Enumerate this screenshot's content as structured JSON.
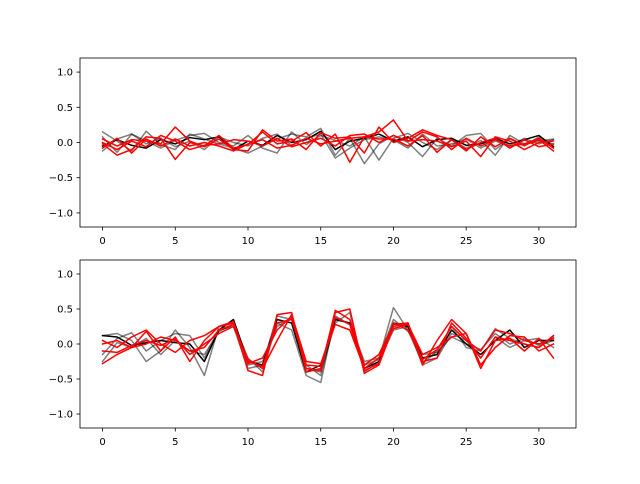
{
  "chart_data": [
    {
      "type": "line",
      "title": "",
      "xlabel": "",
      "ylabel": "",
      "xlim": [
        -1.55,
        32.55
      ],
      "ylim": [
        -1.2,
        1.2
      ],
      "xticks": [
        0,
        5,
        10,
        15,
        20,
        25,
        30
      ],
      "yticks": [
        -1.0,
        -0.5,
        0.0,
        0.5,
        1.0
      ],
      "xtick_labels": [
        "0",
        "5",
        "10",
        "15",
        "20",
        "25",
        "30"
      ],
      "ytick_labels": [
        "−1.0",
        "−0.5",
        "0.0",
        "0.5",
        "1.0"
      ],
      "grid": false,
      "x": [
        0,
        1,
        2,
        3,
        4,
        5,
        6,
        7,
        8,
        9,
        10,
        11,
        12,
        13,
        14,
        15,
        16,
        17,
        18,
        19,
        20,
        21,
        22,
        23,
        24,
        25,
        26,
        27,
        28,
        29,
        30,
        31
      ],
      "series": [
        {
          "color": "#000000",
          "alpha": 0.5,
          "values": [
            0.15,
            0.02,
            -0.12,
            0.16,
            -0.03,
            -0.1,
            0.12,
            0.05,
            -0.02,
            -0.08,
            -0.15,
            -0.05,
            0.05,
            0.12,
            0.08,
            0.2,
            -0.18,
            0.06,
            -0.3,
            -0.02,
            0.1,
            0.0,
            -0.2,
            0.06,
            -0.05,
            0.1,
            0.13,
            -0.1,
            0.05,
            -0.05,
            0.08,
            -0.03
          ]
        },
        {
          "color": "#000000",
          "alpha": 0.5,
          "values": [
            0.08,
            -0.14,
            0.12,
            0.02,
            -0.08,
            0.03,
            0.1,
            0.13,
            0.0,
            -0.05,
            0.1,
            -0.08,
            -0.15,
            0.15,
            -0.03,
            0.1,
            0.03,
            -0.05,
            0.08,
            -0.25,
            0.06,
            0.13,
            0.0,
            -0.1,
            0.04,
            -0.08,
            0.03,
            -0.18,
            0.1,
            -0.02,
            0.02,
            0.05
          ]
        },
        {
          "color": "#000000",
          "alpha": 0.5,
          "values": [
            -0.12,
            0.05,
            0.12,
            -0.02,
            0.06,
            -0.06,
            0.02,
            -0.1,
            0.08,
            0.0,
            -0.05,
            0.06,
            0.12,
            -0.04,
            0.06,
            0.12,
            -0.22,
            -0.08,
            0.04,
            0.08,
            0.04,
            -0.08,
            0.12,
            -0.05,
            -0.02,
            0.05,
            -0.08,
            0.02,
            -0.05,
            0.06,
            -0.02,
            0.04
          ]
        },
        {
          "color": "#000000",
          "alpha": 1.0,
          "values": [
            -0.05,
            0.04,
            -0.04,
            -0.08,
            0.04,
            -0.02,
            0.07,
            0.04,
            0.08,
            -0.1,
            0.02,
            -0.04,
            0.1,
            0.0,
            0.04,
            0.16,
            -0.1,
            0.02,
            0.06,
            0.12,
            0.02,
            0.08,
            -0.06,
            0.04,
            0.06,
            -0.04,
            -0.02,
            0.06,
            -0.02,
            0.04,
            0.1,
            -0.06
          ]
        },
        {
          "color": "#ff0000",
          "alpha": 1.0,
          "values": [
            -0.02,
            -0.18,
            -0.1,
            0.08,
            0.06,
            -0.24,
            0.0,
            -0.05,
            0.1,
            -0.08,
            -0.03,
            0.15,
            -0.02,
            0.02,
            0.14,
            -0.05,
            0.12,
            -0.28,
            0.08,
            0.15,
            0.32,
            0.02,
            0.15,
            0.08,
            -0.1,
            0.06,
            -0.05,
            0.04,
            -0.05,
            -0.02,
            0.06,
            -0.08
          ]
        },
        {
          "color": "#ff0000",
          "alpha": 1.0,
          "values": [
            0.05,
            -0.05,
            0.04,
            0.02,
            -0.02,
            0.22,
            0.02,
            -0.06,
            0.05,
            -0.1,
            -0.12,
            0.18,
            0.02,
            0.05,
            -0.1,
            0.14,
            0.06,
            0.08,
            -0.15,
            0.22,
            0.0,
            0.06,
            0.18,
            0.1,
            0.04,
            -0.12,
            0.08,
            -0.06,
            0.06,
            -0.04,
            0.04,
            -0.12
          ]
        },
        {
          "color": "#ff0000",
          "alpha": 1.0,
          "values": [
            -0.08,
            0.06,
            -0.15,
            0.05,
            -0.05,
            0.05,
            -0.05,
            0.0,
            -0.05,
            -0.12,
            -0.02,
            0.04,
            -0.08,
            -0.04,
            0.06,
            -0.02,
            0.02,
            0.06,
            0.08,
            0.05,
            0.05,
            -0.05,
            0.1,
            -0.14,
            0.04,
            -0.1,
            0.0,
            0.06,
            -0.08,
            0.04,
            -0.06,
            -0.02
          ]
        },
        {
          "color": "#ff0000",
          "alpha": 1.0,
          "values": [
            0.0,
            -0.1,
            0.02,
            -0.06,
            0.1,
            0.02,
            -0.1,
            -0.04,
            -0.02,
            0.04,
            0.02,
            -0.05,
            0.06,
            -0.06,
            0.0,
            0.06,
            -0.05,
            0.1,
            0.12,
            0.0,
            0.1,
            0.02,
            0.04,
            0.02,
            -0.06,
            0.02,
            -0.2,
            0.08,
            0.02,
            -0.1,
            0.0,
            0.02
          ]
        }
      ]
    },
    {
      "type": "line",
      "title": "",
      "xlabel": "",
      "ylabel": "",
      "xlim": [
        -1.55,
        32.55
      ],
      "ylim": [
        -1.2,
        1.2
      ],
      "xticks": [
        0,
        5,
        10,
        15,
        20,
        25,
        30
      ],
      "yticks": [
        -1.0,
        -0.5,
        0.0,
        0.5,
        1.0
      ],
      "xtick_labels": [
        "0",
        "5",
        "10",
        "15",
        "20",
        "25",
        "30"
      ],
      "ytick_labels": [
        "−1.0",
        "−0.5",
        "0.0",
        "0.5",
        "1.0"
      ],
      "grid": false,
      "x": [
        0,
        1,
        2,
        3,
        4,
        5,
        6,
        7,
        8,
        9,
        10,
        11,
        12,
        13,
        14,
        15,
        16,
        17,
        18,
        19,
        20,
        21,
        22,
        23,
        24,
        25,
        26,
        27,
        28,
        29,
        30,
        31
      ],
      "series": [
        {
          "color": "#000000",
          "alpha": 0.5,
          "values": [
            0.12,
            0.15,
            0.05,
            -0.25,
            -0.1,
            0.2,
            -0.05,
            -0.45,
            0.25,
            0.3,
            -0.2,
            -0.4,
            0.3,
            0.2,
            -0.45,
            -0.55,
            0.4,
            0.28,
            -0.3,
            -0.22,
            0.52,
            0.2,
            -0.28,
            -0.1,
            0.25,
            -0.05,
            -0.1,
            0.22,
            0.08,
            0.0,
            -0.05,
            0.1
          ]
        },
        {
          "color": "#000000",
          "alpha": 0.5,
          "values": [
            -0.15,
            0.08,
            0.16,
            -0.1,
            0.05,
            0.15,
            0.12,
            -0.2,
            0.2,
            0.25,
            -0.35,
            -0.3,
            0.4,
            0.35,
            -0.35,
            -0.4,
            0.3,
            0.45,
            -0.4,
            -0.25,
            0.2,
            0.25,
            -0.3,
            -0.2,
            0.15,
            0.05,
            -0.2,
            0.1,
            -0.05,
            0.05,
            0.08,
            -0.05
          ]
        },
        {
          "color": "#000000",
          "alpha": 0.5,
          "values": [
            -0.25,
            0.02,
            -0.05,
            0.08,
            -0.15,
            0.05,
            -0.1,
            -0.15,
            0.18,
            0.28,
            -0.3,
            -0.25,
            0.25,
            0.38,
            -0.3,
            -0.45,
            0.35,
            0.3,
            -0.25,
            -0.2,
            0.35,
            0.18,
            -0.15,
            -0.12,
            0.1,
            0.0,
            -0.08,
            0.15,
            0.0,
            0.08,
            -0.02,
            0.05
          ]
        },
        {
          "color": "#000000",
          "alpha": 1.0,
          "values": [
            0.12,
            0.1,
            -0.02,
            0.02,
            0.05,
            0.02,
            0.0,
            -0.25,
            0.2,
            0.35,
            -0.25,
            -0.3,
            0.35,
            0.3,
            -0.4,
            -0.3,
            0.35,
            0.3,
            -0.35,
            -0.25,
            0.3,
            0.25,
            -0.2,
            -0.15,
            0.2,
            0.0,
            -0.15,
            0.05,
            0.2,
            -0.05,
            0.05,
            0.05
          ]
        },
        {
          "color": "#ff0000",
          "alpha": 1.0,
          "values": [
            -0.28,
            -0.15,
            -0.05,
            0.18,
            -0.1,
            0.1,
            -0.25,
            0.05,
            0.25,
            0.3,
            -0.38,
            -0.45,
            0.42,
            0.45,
            -0.4,
            -0.35,
            0.45,
            0.5,
            -0.42,
            -0.3,
            0.25,
            0.3,
            -0.3,
            0.05,
            0.35,
            0.15,
            -0.35,
            0.05,
            0.08,
            -0.1,
            0.08,
            -0.2
          ]
        },
        {
          "color": "#ff0000",
          "alpha": 1.0,
          "values": [
            0.05,
            -0.05,
            0.1,
            0.2,
            0.0,
            -0.12,
            0.05,
            0.12,
            0.25,
            0.32,
            -0.28,
            -0.2,
            0.2,
            0.4,
            -0.35,
            -0.38,
            0.48,
            0.35,
            -0.3,
            -0.15,
            0.28,
            0.3,
            -0.25,
            -0.2,
            0.3,
            0.08,
            -0.2,
            0.1,
            0.05,
            0.0,
            -0.05,
            0.12
          ]
        },
        {
          "color": "#ff0000",
          "alpha": 1.0,
          "values": [
            0.0,
            0.05,
            -0.05,
            0.0,
            0.1,
            0.05,
            -0.1,
            -0.05,
            0.2,
            0.28,
            -0.25,
            -0.32,
            0.3,
            0.35,
            -0.3,
            -0.32,
            0.38,
            0.28,
            -0.38,
            -0.28,
            0.3,
            0.2,
            -0.22,
            -0.08,
            0.25,
            0.05,
            -0.1,
            0.2,
            0.15,
            0.05,
            0.0,
            0.08
          ]
        },
        {
          "color": "#ff0000",
          "alpha": 1.0,
          "values": [
            -0.1,
            -0.12,
            -0.02,
            0.05,
            -0.02,
            0.08,
            -0.15,
            0.0,
            0.15,
            0.25,
            -0.22,
            -0.35,
            0.05,
            0.42,
            -0.25,
            -0.28,
            0.28,
            0.2,
            -0.35,
            -0.2,
            0.22,
            0.28,
            -0.15,
            -0.05,
            0.1,
            0.15,
            -0.3,
            -0.05,
            0.12,
            0.1,
            -0.1,
            0.0
          ]
        }
      ]
    }
  ]
}
